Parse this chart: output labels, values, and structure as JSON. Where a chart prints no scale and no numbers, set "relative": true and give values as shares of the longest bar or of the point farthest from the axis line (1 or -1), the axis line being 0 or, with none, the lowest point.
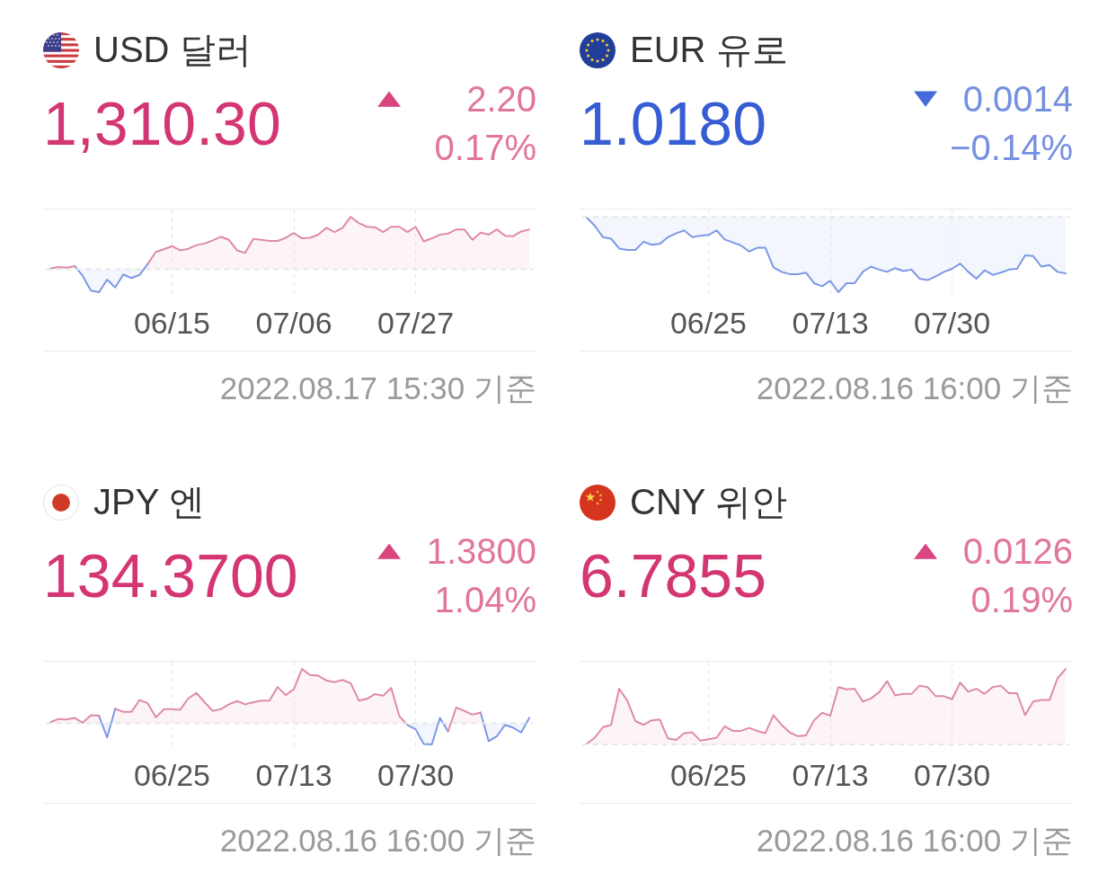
{
  "chart_data": [
    {
      "type": "area",
      "title": "USD 달러",
      "subtitle": "1,310.30",
      "annotations": [
        "▲",
        "2.20",
        "0.17%",
        "2022.08.17 15:30 기준"
      ],
      "relative": true,
      "grid": "x",
      "categories": [
        null,
        null,
        null,
        null,
        null,
        null,
        null,
        null,
        null,
        null,
        null,
        null,
        null,
        null,
        null,
        "06/15",
        null,
        null,
        null,
        null,
        null,
        null,
        null,
        null,
        null,
        null,
        null,
        null,
        null,
        null,
        "07/06",
        null,
        null,
        null,
        null,
        null,
        null,
        null,
        null,
        null,
        null,
        null,
        null,
        null,
        null,
        "07/27",
        null,
        null,
        null,
        null,
        null,
        null,
        null,
        null,
        null,
        null,
        null,
        null,
        null,
        null
      ],
      "series": [
        {
          "color": "#df8aab",
          "values": [
            0.01,
            0.04,
            0.03,
            0.06,
            null,
            null,
            null,
            null,
            null,
            null,
            null,
            null,
            0.1,
            0.33,
            0.38,
            0.44,
            0.36,
            0.39,
            0.46,
            0.49,
            0.55,
            0.62,
            0.56,
            0.36,
            0.31,
            0.58,
            0.56,
            0.54,
            0.54,
            0.6,
            0.69,
            0.59,
            0.6,
            0.66,
            0.79,
            0.71,
            0.79,
            1.0,
            0.88,
            0.81,
            0.8,
            0.71,
            0.81,
            0.81,
            0.71,
            0.81,
            0.53,
            0.59,
            0.66,
            0.68,
            0.76,
            0.76,
            0.56,
            0.7,
            0.66,
            0.76,
            0.64,
            0.63,
            0.72,
            0.76
          ]
        },
        {
          "color": "#7d98e6",
          "values": [
            null,
            null,
            null,
            0.06,
            -0.13,
            -0.41,
            -0.44,
            -0.2,
            -0.35,
            -0.1,
            -0.17,
            -0.11,
            0.1,
            null,
            null,
            null,
            null,
            null,
            null,
            null,
            null,
            null,
            null,
            null,
            null,
            null,
            null,
            null,
            null,
            null,
            null,
            null,
            null,
            null,
            null,
            null,
            null,
            null,
            null,
            null,
            null,
            null,
            null,
            null,
            null,
            null,
            null,
            null,
            null,
            null,
            null,
            null,
            null,
            null,
            null,
            null,
            null,
            null,
            null,
            null
          ]
        }
      ],
      "ref_lines": [
        {
          "axis": "y",
          "value": 0,
          "color": "#e6e6e6",
          "line_style": "dashed"
        }
      ]
    },
    {
      "type": "area",
      "title": "EUR 유로",
      "subtitle": "1.0180",
      "annotations": [
        "▼",
        "0.0014",
        "−0.14%",
        "2022.08.16 16:00 기준"
      ],
      "relative": true,
      "grid": "x",
      "categories": [
        null,
        null,
        null,
        null,
        null,
        null,
        null,
        null,
        null,
        null,
        null,
        null,
        null,
        null,
        null,
        "06/25",
        null,
        null,
        null,
        null,
        null,
        null,
        null,
        null,
        null,
        null,
        null,
        null,
        null,
        null,
        "07/13",
        null,
        null,
        null,
        null,
        null,
        null,
        null,
        null,
        null,
        null,
        null,
        null,
        null,
        null,
        "07/30",
        null,
        null,
        null,
        null,
        null,
        null,
        null,
        null,
        null,
        null,
        null,
        null,
        null,
        null
      ],
      "series": [
        {
          "color": "#7d98e6",
          "values": [
            -0.01,
            -0.12,
            -0.27,
            -0.29,
            -0.42,
            -0.44,
            -0.44,
            -0.33,
            -0.37,
            -0.36,
            -0.27,
            -0.22,
            -0.18,
            -0.27,
            -0.25,
            -0.24,
            -0.18,
            -0.3,
            -0.34,
            -0.38,
            -0.46,
            -0.41,
            -0.41,
            -0.67,
            -0.73,
            -0.76,
            -0.76,
            -0.74,
            -0.88,
            -0.92,
            -0.85,
            -1.0,
            -0.88,
            -0.88,
            -0.73,
            -0.66,
            -0.7,
            -0.73,
            -0.68,
            -0.72,
            -0.7,
            -0.82,
            -0.84,
            -0.79,
            -0.73,
            -0.69,
            -0.62,
            -0.73,
            -0.82,
            -0.71,
            -0.77,
            -0.74,
            -0.7,
            -0.69,
            -0.51,
            -0.52,
            -0.66,
            -0.64,
            -0.73,
            -0.75
          ]
        }
      ],
      "ref_lines": [
        {
          "axis": "y",
          "value": 0,
          "color": "#e6e6e6",
          "line_style": "dashed"
        }
      ]
    },
    {
      "type": "area",
      "title": "JPY 엔",
      "subtitle": "134.3700",
      "annotations": [
        "▲",
        "1.3800",
        "1.04%",
        "2022.08.16 16:00 기준"
      ],
      "relative": true,
      "grid": "x",
      "categories": [
        null,
        null,
        null,
        null,
        null,
        null,
        null,
        null,
        null,
        null,
        null,
        null,
        null,
        null,
        null,
        "06/25",
        null,
        null,
        null,
        null,
        null,
        null,
        null,
        null,
        null,
        null,
        null,
        null,
        null,
        null,
        "07/13",
        null,
        null,
        null,
        null,
        null,
        null,
        null,
        null,
        null,
        null,
        null,
        null,
        null,
        null,
        "07/30",
        null,
        null,
        null,
        null,
        null,
        null,
        null,
        null,
        null,
        null,
        null,
        null,
        null,
        null
      ],
      "series": [
        {
          "color": "#df8aab",
          "values": [
            0.02,
            0.08,
            0.07,
            0.1,
            0.01,
            0.15,
            0.14,
            null,
            0.27,
            0.21,
            0.21,
            0.43,
            0.37,
            0.11,
            0.26,
            0.26,
            0.25,
            0.46,
            0.56,
            0.39,
            0.23,
            0.26,
            0.35,
            0.41,
            0.35,
            0.39,
            0.42,
            0.42,
            0.67,
            0.52,
            0.63,
            1.0,
            0.89,
            0.88,
            0.79,
            0.76,
            0.8,
            0.74,
            0.42,
            0.45,
            0.54,
            0.51,
            0.65,
            0.13,
            -0.03,
            null,
            null,
            null,
            null,
            -0.15,
            0.29,
            0.23,
            0.16,
            0.2,
            null,
            null,
            null,
            null,
            null,
            null
          ]
        },
        {
          "color": "#7d98e6",
          "values": [
            null,
            null,
            null,
            null,
            null,
            null,
            0.14,
            -0.26,
            0.27,
            null,
            null,
            null,
            null,
            null,
            null,
            null,
            null,
            null,
            null,
            null,
            null,
            null,
            null,
            null,
            null,
            null,
            null,
            null,
            null,
            null,
            null,
            null,
            null,
            null,
            null,
            null,
            null,
            null,
            null,
            null,
            null,
            null,
            null,
            null,
            -0.03,
            -0.11,
            -0.38,
            -0.39,
            0.1,
            -0.15,
            null,
            null,
            null,
            0.2,
            -0.33,
            -0.24,
            -0.03,
            -0.08,
            -0.17,
            0.1
          ]
        }
      ],
      "ref_lines": [
        {
          "axis": "y",
          "value": 0,
          "color": "#e6e6e6",
          "line_style": "dashed"
        }
      ]
    },
    {
      "type": "area",
      "title": "CNY 위안",
      "subtitle": "6.7855",
      "annotations": [
        "▲",
        "0.0126",
        "0.19%",
        "2022.08.16 16:00 기준"
      ],
      "relative": true,
      "grid": "x",
      "categories": [
        null,
        null,
        null,
        null,
        null,
        null,
        null,
        null,
        null,
        null,
        null,
        null,
        null,
        null,
        null,
        "06/25",
        null,
        null,
        null,
        null,
        null,
        null,
        null,
        null,
        null,
        null,
        null,
        null,
        null,
        null,
        "07/13",
        null,
        null,
        null,
        null,
        null,
        null,
        null,
        null,
        null,
        null,
        null,
        null,
        null,
        null,
        "07/30",
        null,
        null,
        null,
        null,
        null,
        null,
        null,
        null,
        null,
        null,
        null,
        null,
        null,
        null
      ],
      "series": [
        {
          "color": "#df8aab",
          "values": [
            0.01,
            0.09,
            0.23,
            0.26,
            0.74,
            0.58,
            0.31,
            0.26,
            0.32,
            0.33,
            0.08,
            0.06,
            0.15,
            0.16,
            0.05,
            0.07,
            0.09,
            0.24,
            0.18,
            0.18,
            0.22,
            0.18,
            0.15,
            0.39,
            0.26,
            0.16,
            0.11,
            0.12,
            0.32,
            0.42,
            0.38,
            0.76,
            0.73,
            0.74,
            0.57,
            0.61,
            0.69,
            0.84,
            0.65,
            0.67,
            0.67,
            0.78,
            0.76,
            0.64,
            0.64,
            0.6,
            0.82,
            0.7,
            0.74,
            0.67,
            0.76,
            0.78,
            0.68,
            0.68,
            0.39,
            0.57,
            0.59,
            0.59,
            0.88,
            1.0
          ]
        }
      ],
      "ref_lines": [
        {
          "axis": "y",
          "value": 0,
          "color": "#e6e6e6",
          "line_style": "dashed"
        }
      ]
    }
  ]
}
